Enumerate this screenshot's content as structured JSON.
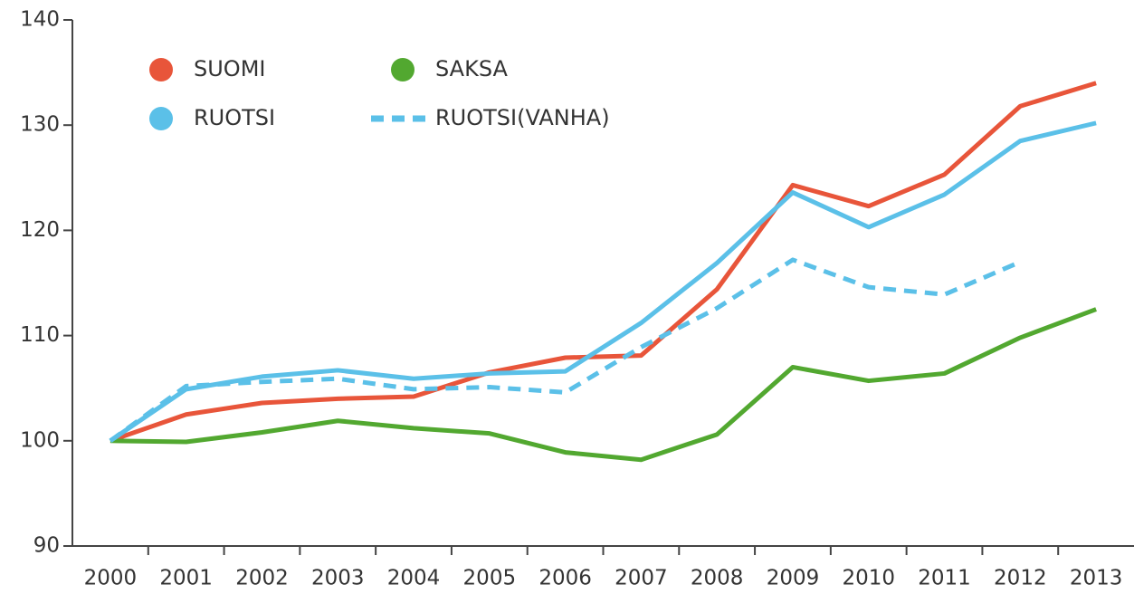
{
  "chart_data": {
    "type": "line",
    "categories": [
      "2000",
      "2001",
      "2002",
      "2003",
      "2004",
      "2005",
      "2006",
      "2007",
      "2008",
      "2009",
      "2010",
      "2011",
      "2012",
      "2013"
    ],
    "series": [
      {
        "name": "SUOMI",
        "color": "#e8553a",
        "style": "solid",
        "values": [
          100,
          102.5,
          103.6,
          104.0,
          104.2,
          106.5,
          107.9,
          108.1,
          114.4,
          124.3,
          122.3,
          125.3,
          131.8,
          134.0
        ]
      },
      {
        "name": "SAKSA",
        "color": "#52a830",
        "style": "solid",
        "values": [
          100,
          99.9,
          100.8,
          101.9,
          101.2,
          100.7,
          98.9,
          98.2,
          100.6,
          107.0,
          105.7,
          106.4,
          109.8,
          112.5
        ]
      },
      {
        "name": "RUOTSI",
        "color": "#5bc0e8",
        "style": "solid",
        "values": [
          100,
          104.9,
          106.1,
          106.7,
          105.9,
          106.4,
          106.6,
          111.2,
          116.9,
          123.6,
          120.3,
          123.4,
          128.5,
          130.2
        ]
      },
      {
        "name": "RUOTSI(VANHA)",
        "color": "#5bc0e8",
        "style": "dashed",
        "values": [
          100,
          105.2,
          105.6,
          105.9,
          104.9,
          105.1,
          104.6,
          108.9,
          112.6,
          117.2,
          114.6,
          113.9,
          117.0,
          null
        ]
      }
    ],
    "ylim": [
      90,
      140
    ],
    "yticks": [
      90,
      100,
      110,
      120,
      130,
      140
    ],
    "grid": false
  }
}
